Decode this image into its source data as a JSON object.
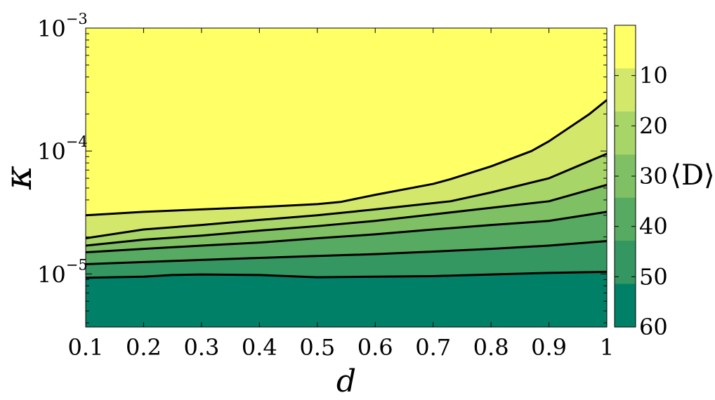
{
  "chart_data": {
    "type": "contour",
    "xlabel": "d",
    "ylabel": "κ",
    "colorbar_label": "⟨D⟩",
    "xlim": [
      0.1,
      1.0
    ],
    "ylim": [
      3.7e-06,
      0.001
    ],
    "yscale": "log",
    "grid": false,
    "x_ticks": [
      0.1,
      0.2,
      0.3,
      0.4,
      0.5,
      0.6,
      0.7,
      0.8,
      0.9,
      1.0
    ],
    "x_tick_labels": [
      "0.1",
      "0.2",
      "0.3",
      "0.4",
      "0.5",
      "0.6",
      "0.7",
      "0.8",
      "0.9",
      "1"
    ],
    "y_ticks": [
      {
        "base": "10",
        "exp": "−5",
        "value": 1e-05
      },
      {
        "base": "10",
        "exp": "−4",
        "value": 0.0001
      },
      {
        "base": "10",
        "exp": "−3",
        "value": 0.001
      }
    ],
    "colorbar": {
      "min": 0,
      "max": 60,
      "ticks": [
        "10",
        "20",
        "30",
        "40",
        "50",
        "60"
      ],
      "tick_values": [
        10,
        20,
        30,
        40,
        50,
        60
      ],
      "colors_top_to_bottom": [
        "#ffff66",
        "#d3e86b",
        "#a8d568",
        "#7fc064",
        "#57aa61",
        "#349660",
        "#008066"
      ]
    },
    "contour_levels": [
      {
        "x": [
          0.1,
          0.2,
          0.3,
          0.4,
          0.5,
          0.54,
          0.6,
          0.7,
          0.73,
          0.8,
          0.87,
          0.9,
          0.97,
          1.0
        ],
        "y": [
          3e-05,
          3.2e-05,
          3.35e-05,
          3.5e-05,
          3.7e-05,
          3.85e-05,
          4.4e-05,
          5.4e-05,
          5.9e-05,
          7.5e-05,
          0.0001,
          0.00012,
          0.0002,
          0.00026
        ]
      },
      {
        "x": [
          0.1,
          0.2,
          0.3,
          0.4,
          0.5,
          0.6,
          0.73,
          0.8,
          0.9,
          1.0
        ],
        "y": [
          1.95e-05,
          2.3e-05,
          2.5e-05,
          2.75e-05,
          3e-05,
          3.35e-05,
          3.9e-05,
          4.6e-05,
          6e-05,
          9.5e-05
        ]
      },
      {
        "x": [
          0.1,
          0.2,
          0.3,
          0.4,
          0.5,
          0.6,
          0.7,
          0.8,
          0.9,
          1.0
        ],
        "y": [
          1.7e-05,
          1.9e-05,
          2.05e-05,
          2.25e-05,
          2.45e-05,
          2.7e-05,
          3.05e-05,
          3.45e-05,
          3.9e-05,
          5.3e-05
        ]
      },
      {
        "x": [
          0.1,
          0.2,
          0.3,
          0.4,
          0.5,
          0.6,
          0.7,
          0.8,
          0.9,
          1.0
        ],
        "y": [
          1.5e-05,
          1.6e-05,
          1.7e-05,
          1.8e-05,
          1.95e-05,
          2.1e-05,
          2.3e-05,
          2.5e-05,
          2.7e-05,
          3.2e-05
        ]
      },
      {
        "x": [
          0.1,
          0.2,
          0.3,
          0.4,
          0.5,
          0.6,
          0.7,
          0.8,
          0.9,
          1.0
        ],
        "y": [
          1.2e-05,
          1.25e-05,
          1.3e-05,
          1.35e-05,
          1.4e-05,
          1.45e-05,
          1.52e-05,
          1.6e-05,
          1.7e-05,
          1.85e-05
        ]
      },
      {
        "x": [
          0.1,
          0.2,
          0.25,
          0.3,
          0.4,
          0.5,
          0.6,
          0.7,
          0.8,
          0.9,
          1.0
        ],
        "y": [
          9.3e-06,
          9.5e-06,
          9.8e-06,
          9.9e-06,
          9.8e-06,
          9.4e-06,
          9.5e-06,
          9.6e-06,
          9.9e-06,
          1.02e-05,
          1.04e-05
        ]
      }
    ]
  }
}
